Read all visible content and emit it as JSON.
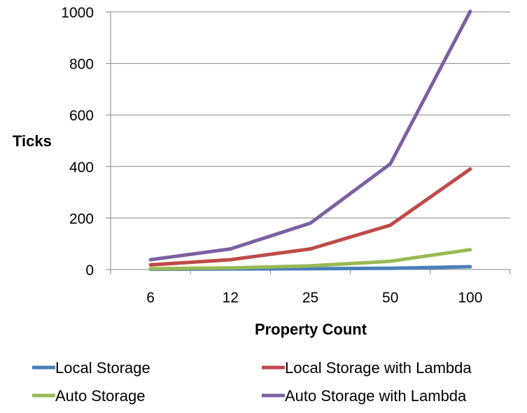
{
  "chart_data": {
    "type": "line",
    "categories": [
      "6",
      "12",
      "25",
      "50",
      "100"
    ],
    "xlabel": "Property Count",
    "ylabel": "Ticks",
    "ylim": [
      0,
      1000
    ],
    "yticks": [
      0,
      200,
      400,
      600,
      800,
      1000
    ],
    "grid": "horizontal",
    "legend_position": "bottom",
    "series": [
      {
        "name": "Local Storage",
        "color": "#4a7ebb",
        "values": [
          1,
          2,
          3,
          5,
          11
        ]
      },
      {
        "name": "Local Storage with Lambda",
        "color": "#be4b48",
        "values": [
          18,
          38,
          80,
          172,
          390
        ]
      },
      {
        "name": "Auto Storage",
        "color": "#98b954",
        "values": [
          3,
          6,
          14,
          32,
          77
        ]
      },
      {
        "name": "Auto Storage with Lambda",
        "color": "#7d60a0",
        "values": [
          38,
          80,
          180,
          410,
          1002
        ]
      }
    ]
  }
}
